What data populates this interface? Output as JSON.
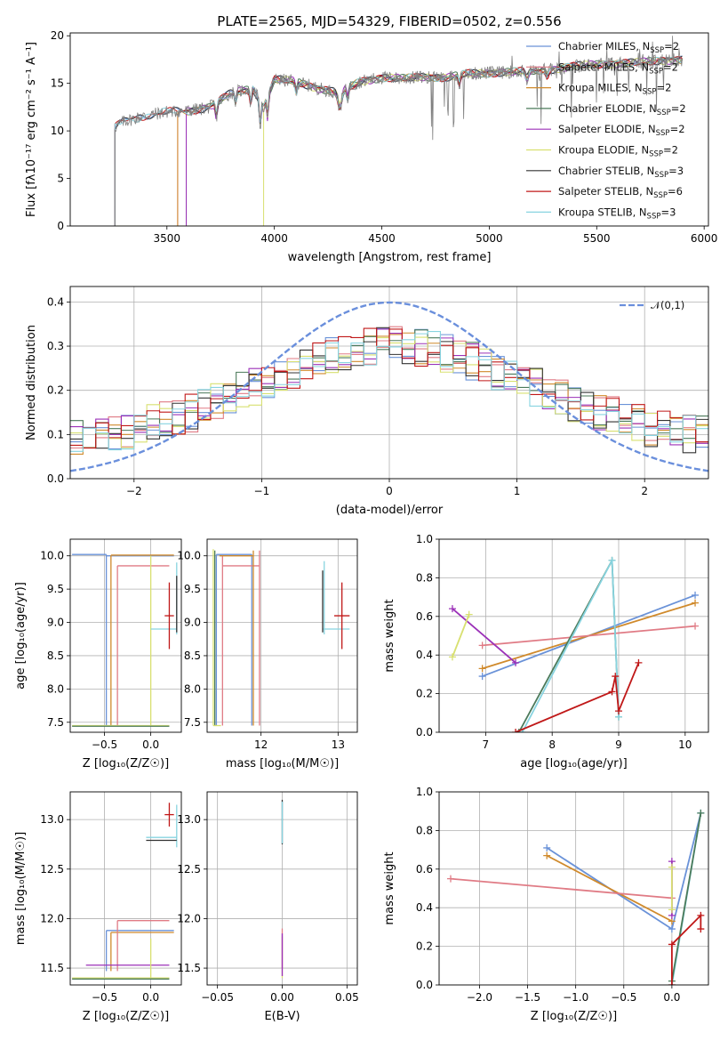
{
  "chart_data": [
    {
      "id": "spectrum",
      "type": "line",
      "title": "PLATE=2565, MJD=54329, FIBERID=0502, z=0.556",
      "xlabel": "wavelength [Angstrom, rest frame]",
      "ylabel": "Flux [fλ10⁻¹⁷ erg cm⁻² s⁻¹ A⁻¹]",
      "xlim": [
        3050,
        6020
      ],
      "ylim": [
        0,
        20.3
      ],
      "xticks": [
        3500,
        4000,
        4500,
        5000,
        5500,
        6000
      ],
      "yticks": [
        0,
        5,
        10,
        15,
        20
      ],
      "grid": false,
      "legend_position": "top-right",
      "legend": [
        {
          "label": "Chabrier MILES, N",
          "sub": "SSP",
          "value": "=2",
          "color": "#6a92d8"
        },
        {
          "label": "Salpeter MILES, N",
          "sub": "SSP",
          "value": "=2",
          "color": "#e07b85"
        },
        {
          "label": "Kroupa MILES, N",
          "sub": "SSP",
          "value": "=2",
          "color": "#d08a2c"
        },
        {
          "label": "Chabrier ELODIE, N",
          "sub": "SSP",
          "value": "=2",
          "color": "#4b7a5a"
        },
        {
          "label": "Salpeter ELODIE, N",
          "sub": "SSP",
          "value": "=2",
          "color": "#9b30b8"
        },
        {
          "label": "Kroupa ELODIE, N",
          "sub": "SSP",
          "value": "=2",
          "color": "#d8e070"
        },
        {
          "label": "Chabrier STELIB, N",
          "sub": "SSP",
          "value": "=3",
          "color": "#333333"
        },
        {
          "label": "Salpeter STELIB, N",
          "sub": "SSP",
          "value": "=6",
          "color": "#c01818"
        },
        {
          "label": "Kroupa STELIB, N",
          "sub": "SSP",
          "value": "=3",
          "color": "#88d4e0"
        }
      ],
      "data_color": "#808080",
      "continuum": [
        [
          3250,
          10.3
        ],
        [
          3300,
          11.0
        ],
        [
          3400,
          11.6
        ],
        [
          3500,
          12.0
        ],
        [
          3600,
          12.1
        ],
        [
          3700,
          12.5
        ],
        [
          3800,
          14.0
        ],
        [
          3900,
          14.5
        ],
        [
          3950,
          12.5
        ],
        [
          4000,
          15.4
        ],
        [
          4100,
          15.2
        ],
        [
          4200,
          14.5
        ],
        [
          4300,
          14.0
        ],
        [
          4400,
          15.2
        ],
        [
          4500,
          15.6
        ],
        [
          4600,
          15.5
        ],
        [
          4700,
          15.7
        ],
        [
          4800,
          15.6
        ],
        [
          4900,
          16.0
        ],
        [
          5000,
          16.1
        ],
        [
          5100,
          16.2
        ],
        [
          5200,
          16.3
        ],
        [
          5300,
          16.5
        ],
        [
          5400,
          16.8
        ],
        [
          5500,
          17.0
        ],
        [
          5600,
          17.1
        ],
        [
          5700,
          17.2
        ],
        [
          5800,
          17.4
        ],
        [
          5900,
          17.5
        ]
      ],
      "model_start": [
        {
          "color": "#6a92d8",
          "start": 3258
        },
        {
          "color": "#e07b85",
          "start": 3550
        },
        {
          "color": "#d08a2c",
          "start": 3550
        },
        {
          "color": "#4b7a5a",
          "start": 3590
        },
        {
          "color": "#9b30b8",
          "start": 3590
        },
        {
          "color": "#d8e070",
          "start": 3950
        },
        {
          "color": "#333333",
          "start": 3258
        },
        {
          "color": "#c01818",
          "start": 3258
        },
        {
          "color": "#88d4e0",
          "start": 3258
        }
      ]
    },
    {
      "id": "residuals",
      "type": "line",
      "xlabel": "(data-model)/error",
      "ylabel": "Normed distribution",
      "xlim": [
        -2.5,
        2.5
      ],
      "ylim": [
        0,
        0.435
      ],
      "xticks": [
        -2,
        -1,
        0,
        1,
        2
      ],
      "yticks": [
        0.0,
        0.1,
        0.2,
        0.3,
        0.4
      ],
      "grid": true,
      "legend_position": "top-right",
      "reference_label": "𝒩(0,1)",
      "reference_color": "#6a8fdc",
      "bin_width": 0.1,
      "colors": [
        "#6a92d8",
        "#e07b85",
        "#d08a2c",
        "#4b7a5a",
        "#9b30b8",
        "#d8e070",
        "#333333",
        "#c01818",
        "#88d4e0"
      ]
    },
    {
      "id": "age-vs-z",
      "type": "scatter",
      "xlabel": "Z [log₁₀(Z/Z☉)]",
      "ylabel": "age  [log₁₀(age/yr)]",
      "xlim": [
        -0.87,
        0.33
      ],
      "ylim": [
        7.35,
        10.25
      ],
      "xticks": [
        -0.5,
        0.0
      ],
      "yticks": [
        7.5,
        8.0,
        8.5,
        9.0,
        9.5,
        10.0
      ],
      "grid": true,
      "segments": [
        {
          "x": [
            -0.85,
            -0.48
          ],
          "y": [
            10.02,
            10.02
          ],
          "color": "#6a92d8"
        },
        {
          "x": [
            -0.48,
            -0.48
          ],
          "y": [
            7.45,
            10.02
          ],
          "color": "#6a92d8"
        },
        {
          "x": [
            -0.48,
            0.25
          ],
          "y": [
            10.0,
            10.0
          ],
          "color": "#6a92d8"
        },
        {
          "x": [
            -0.43,
            0.25
          ],
          "y": [
            10.01,
            10.01
          ],
          "color": "#d08a2c"
        },
        {
          "x": [
            -0.43,
            -0.43
          ],
          "y": [
            7.45,
            10.01
          ],
          "color": "#d08a2c"
        },
        {
          "x": [
            -0.36,
            0.2
          ],
          "y": [
            9.85,
            9.85
          ],
          "color": "#e07b85"
        },
        {
          "x": [
            -0.36,
            -0.36
          ],
          "y": [
            7.45,
            9.85
          ],
          "color": "#e07b85"
        },
        {
          "x": [
            -0.85,
            0.2
          ],
          "y": [
            7.45,
            7.45
          ],
          "color": "#d8e070"
        },
        {
          "x": [
            0.0,
            0.0
          ],
          "y": [
            7.45,
            10.0
          ],
          "color": "#d8e070"
        },
        {
          "x": [
            -0.85,
            0.2
          ],
          "y": [
            7.44,
            7.44
          ],
          "color": "#4b7a5a"
        },
        {
          "x": [
            0.0,
            0.28
          ],
          "y": [
            8.9,
            8.9
          ],
          "color": "#88d4e0"
        },
        {
          "x": [
            0.28,
            0.28
          ],
          "y": [
            8.82,
            9.9
          ],
          "color": "#88d4e0"
        },
        {
          "x": [
            0.28,
            0.28
          ],
          "y": [
            8.85,
            9.7
          ],
          "color": "#333333"
        }
      ],
      "errorbars": [
        {
          "x": 0.2,
          "y": 9.1,
          "dx": 0.05,
          "dy": 0.5,
          "color": "#c01818"
        }
      ]
    },
    {
      "id": "age-vs-mass",
      "type": "scatter",
      "xlabel": "mass [log₁₀(M/M☉)]",
      "ylabel": "",
      "xlim": [
        11.3,
        13.25
      ],
      "ylim": [
        7.35,
        10.25
      ],
      "xticks": [
        12,
        13
      ],
      "yticks": [
        7.5,
        8.0,
        8.5,
        9.0,
        9.5,
        10.0
      ],
      "grid": true,
      "segments": [
        {
          "x": [
            11.42,
            11.88
          ],
          "y": [
            10.02,
            10.02
          ],
          "color": "#6a92d8"
        },
        {
          "x": [
            11.88,
            11.88
          ],
          "y": [
            7.45,
            10.02
          ],
          "color": "#6a92d8"
        },
        {
          "x": [
            11.42,
            11.42
          ],
          "y": [
            7.45,
            10.02
          ],
          "color": "#6a92d8"
        },
        {
          "x": [
            11.5,
            11.98
          ],
          "y": [
            9.85,
            9.85
          ],
          "color": "#e07b85"
        },
        {
          "x": [
            11.98,
            11.98
          ],
          "y": [
            7.45,
            10.08
          ],
          "color": "#e07b85"
        },
        {
          "x": [
            11.5,
            11.5
          ],
          "y": [
            7.45,
            10.0
          ],
          "color": "#e07b85"
        },
        {
          "x": [
            11.46,
            11.9
          ],
          "y": [
            10.0,
            10.0
          ],
          "color": "#d08a2c"
        },
        {
          "x": [
            11.9,
            11.9
          ],
          "y": [
            7.45,
            10.08
          ],
          "color": "#d08a2c"
        },
        {
          "x": [
            11.38,
            11.38
          ],
          "y": [
            7.45,
            10.1
          ],
          "color": "#d8e070"
        },
        {
          "x": [
            11.4,
            11.4
          ],
          "y": [
            7.45,
            10.08
          ],
          "color": "#4b7a5a"
        },
        {
          "x": [
            11.38,
            11.48
          ],
          "y": [
            7.45,
            7.45
          ],
          "color": "#d8e070"
        },
        {
          "x": [
            12.8,
            13.15
          ],
          "y": [
            8.9,
            8.9
          ],
          "color": "#88d4e0"
        },
        {
          "x": [
            12.82,
            12.82
          ],
          "y": [
            8.82,
            9.92
          ],
          "color": "#88d4e0"
        },
        {
          "x": [
            12.8,
            12.8
          ],
          "y": [
            8.85,
            9.78
          ],
          "color": "#333333"
        }
      ],
      "errorbars": [
        {
          "x": 13.05,
          "y": 9.1,
          "dx": 0.1,
          "dy": 0.5,
          "color": "#c01818"
        }
      ]
    },
    {
      "id": "weight-vs-age",
      "type": "line",
      "xlabel": "age  [log₁₀(age/yr)]",
      "ylabel": "mass weight",
      "xlim": [
        6.3,
        10.35
      ],
      "ylim": [
        0,
        1.0
      ],
      "xticks": [
        7,
        8,
        9,
        10
      ],
      "yticks": [
        0.0,
        0.2,
        0.4,
        0.6,
        0.8,
        1.0
      ],
      "grid": true,
      "series": [
        {
          "color": "#6a92d8",
          "x": [
            6.95,
            10.15
          ],
          "y": [
            0.29,
            0.71
          ]
        },
        {
          "color": "#d08a2c",
          "x": [
            6.95,
            10.15
          ],
          "y": [
            0.33,
            0.67
          ]
        },
        {
          "color": "#e07b85",
          "x": [
            6.95,
            10.15
          ],
          "y": [
            0.45,
            0.55
          ]
        },
        {
          "color": "#9b30b8",
          "x": [
            6.5,
            7.45
          ],
          "y": [
            0.64,
            0.36
          ]
        },
        {
          "color": "#d8e070",
          "x": [
            6.5,
            6.75
          ],
          "y": [
            0.39,
            0.61
          ]
        },
        {
          "color": "#4b7a5a",
          "x": [
            7.5,
            8.9,
            9.0
          ],
          "y": [
            0.0,
            0.89,
            0.08
          ]
        },
        {
          "color": "#88d4e0",
          "x": [
            7.55,
            8.9,
            9.0
          ],
          "y": [
            0.0,
            0.89,
            0.08
          ]
        },
        {
          "color": "#c01818",
          "x": [
            7.45,
            8.9,
            8.95,
            9.0,
            9.3
          ],
          "y": [
            0.0,
            0.21,
            0.29,
            0.11,
            0.36
          ]
        }
      ]
    },
    {
      "id": "mass-vs-z",
      "type": "scatter",
      "xlabel": "Z [log₁₀(Z/Z☉)]",
      "ylabel": "mass [log₁₀(M/M☉)]",
      "xlim": [
        -0.87,
        0.33
      ],
      "ylim": [
        11.33,
        13.28
      ],
      "xticks": [
        -0.5,
        0.0
      ],
      "yticks": [
        11.5,
        12.0,
        12.5,
        13.0
      ],
      "grid": true,
      "segments": [
        {
          "x": [
            -0.48,
            0.25
          ],
          "y": [
            11.88,
            11.88
          ],
          "color": "#6a92d8"
        },
        {
          "x": [
            -0.48,
            -0.48
          ],
          "y": [
            11.47,
            11.88
          ],
          "color": "#6a92d8"
        },
        {
          "x": [
            -0.43,
            0.25
          ],
          "y": [
            11.86,
            11.86
          ],
          "color": "#d08a2c"
        },
        {
          "x": [
            -0.43,
            -0.43
          ],
          "y": [
            11.47,
            11.86
          ],
          "color": "#d08a2c"
        },
        {
          "x": [
            -0.36,
            0.2
          ],
          "y": [
            11.98,
            11.98
          ],
          "color": "#e07b85"
        },
        {
          "x": [
            -0.36,
            -0.36
          ],
          "y": [
            11.47,
            11.98
          ],
          "color": "#e07b85"
        },
        {
          "x": [
            -0.7,
            0.2
          ],
          "y": [
            11.53,
            11.53
          ],
          "color": "#9b30b8"
        },
        {
          "x": [
            -0.85,
            0.2
          ],
          "y": [
            11.4,
            11.4
          ],
          "color": "#d8e070"
        },
        {
          "x": [
            0.0,
            0.0
          ],
          "y": [
            11.4,
            11.8
          ],
          "color": "#d8e070"
        },
        {
          "x": [
            -0.85,
            0.2
          ],
          "y": [
            11.39,
            11.39
          ],
          "color": "#4b7a5a"
        },
        {
          "x": [
            -0.05,
            0.28
          ],
          "y": [
            12.82,
            12.82
          ],
          "color": "#88d4e0"
        },
        {
          "x": [
            0.28,
            0.28
          ],
          "y": [
            12.72,
            13.15
          ],
          "color": "#88d4e0"
        },
        {
          "x": [
            -0.05,
            0.28
          ],
          "y": [
            12.79,
            12.79
          ],
          "color": "#333333"
        }
      ],
      "errorbars": [
        {
          "x": 0.2,
          "y": 13.05,
          "dx": 0.05,
          "dy": 0.12,
          "color": "#c01818"
        }
      ]
    },
    {
      "id": "mass-vs-ebv",
      "type": "scatter",
      "xlabel": "E(B-V)",
      "ylabel": "",
      "xlim": [
        -0.058,
        0.058
      ],
      "ylim": [
        11.33,
        13.28
      ],
      "xticks": [
        -0.05,
        0.0,
        0.05
      ],
      "yticks": [
        11.5,
        12.0,
        12.5,
        13.0
      ],
      "grid": true,
      "segments": [
        {
          "x": [
            0.0,
            0.0
          ],
          "y": [
            11.4,
            11.82
          ],
          "color": "#d8e070"
        },
        {
          "x": [
            0.0,
            0.0
          ],
          "y": [
            11.5,
            11.9
          ],
          "color": "#e07b85"
        },
        {
          "x": [
            0.0,
            0.0
          ],
          "y": [
            11.42,
            11.85
          ],
          "color": "#9b30b8"
        },
        {
          "x": [
            0.0,
            0.0
          ],
          "y": [
            12.75,
            13.2
          ],
          "color": "#333333"
        },
        {
          "x": [
            0.0,
            0.0
          ],
          "y": [
            12.76,
            13.18
          ],
          "color": "#88d4e0"
        }
      ],
      "errorbars": []
    },
    {
      "id": "weight-vs-z",
      "type": "line",
      "xlabel": "Z [log₁₀(Z/Z☉)]",
      "ylabel": "mass weight",
      "xlim": [
        -2.42,
        0.38
      ],
      "ylim": [
        0,
        1.0
      ],
      "xticks": [
        -2.0,
        -1.5,
        -1.0,
        -0.5,
        0.0
      ],
      "yticks": [
        0.0,
        0.2,
        0.4,
        0.6,
        0.8,
        1.0
      ],
      "grid": true,
      "series": [
        {
          "color": "#6a92d8",
          "x": [
            -1.3,
            0.0,
            0.3
          ],
          "y": [
            0.71,
            0.29,
            0.89
          ]
        },
        {
          "color": "#d08a2c",
          "x": [
            -1.3,
            0.0
          ],
          "y": [
            0.67,
            0.33
          ]
        },
        {
          "color": "#e07b85",
          "x": [
            -2.3,
            0.0
          ],
          "y": [
            0.55,
            0.45
          ]
        },
        {
          "color": "#9b30b8",
          "x": [
            0.0,
            0.0
          ],
          "y": [
            0.64,
            0.36
          ]
        },
        {
          "color": "#d8e070",
          "x": [
            0.0,
            0.0
          ],
          "y": [
            0.39,
            0.61
          ]
        },
        {
          "color": "#88d4e0",
          "x": [
            0.0,
            0.3
          ],
          "y": [
            0.0,
            0.89
          ]
        },
        {
          "color": "#4b7a5a",
          "x": [
            0.0,
            0.3
          ],
          "y": [
            0.02,
            0.89
          ]
        },
        {
          "color": "#c01818",
          "x": [
            0.0,
            0.0,
            0.3,
            0.3
          ],
          "y": [
            0.0,
            0.21,
            0.36,
            0.29
          ]
        }
      ]
    }
  ]
}
